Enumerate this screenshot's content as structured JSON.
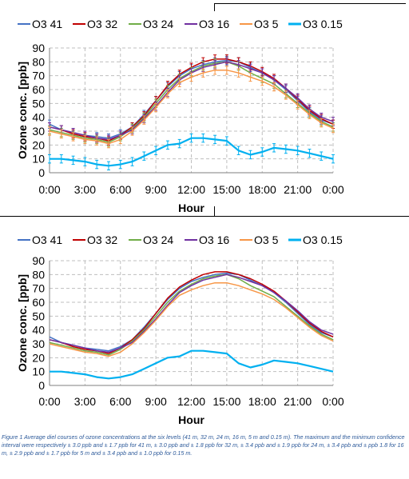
{
  "colors": {
    "O3 41": "#4472c4",
    "O3 32": "#c00000",
    "O3 24": "#70ad47",
    "O3 16": "#7030a0",
    "O3 5": "#f79646",
    "O3 0.15": "#00b0f0"
  },
  "chart_data": [
    {
      "type": "line",
      "title": "",
      "xlabel": "Hour",
      "ylabel": "Ozone conc. [ppb]",
      "ylim": [
        0,
        90
      ],
      "xlim": [
        "0:00",
        "24:00"
      ],
      "y_ticks": [
        "0",
        "10",
        "20",
        "30",
        "40",
        "50",
        "60",
        "70",
        "80",
        "90"
      ],
      "x_ticks": [
        "0:00",
        "3:00",
        "6:00",
        "9:00",
        "12:00",
        "15:00",
        "18:00",
        "21:00",
        "0:00"
      ],
      "grid": true,
      "error_bars": true,
      "legend_position": "top",
      "x": [
        0,
        1,
        2,
        3,
        4,
        5,
        6,
        7,
        8,
        9,
        10,
        11,
        12,
        13,
        14,
        15,
        16,
        17,
        18,
        19,
        20,
        21,
        22,
        23,
        24
      ],
      "series": [
        {
          "name": "O3 41",
          "values": [
            35,
            31,
            29,
            27,
            26,
            25,
            28,
            33,
            42,
            52,
            62,
            70,
            75,
            78,
            80,
            81,
            80,
            76,
            72,
            67,
            60,
            52,
            44,
            38,
            35
          ]
        },
        {
          "name": "O3 32",
          "values": [
            33,
            31,
            28,
            26,
            25,
            23,
            27,
            33,
            41,
            52,
            63,
            71,
            76,
            80,
            82,
            82,
            80,
            77,
            73,
            68,
            61,
            53,
            45,
            39,
            35
          ]
        },
        {
          "name": "O3 24",
          "values": [
            31,
            29,
            27,
            25,
            24,
            22,
            26,
            32,
            40,
            50,
            60,
            68,
            73,
            77,
            79,
            80,
            77,
            72,
            68,
            64,
            57,
            50,
            43,
            37,
            33
          ]
        },
        {
          "name": "O3 16",
          "values": [
            33,
            31,
            29,
            27,
            25,
            24,
            27,
            31,
            39,
            48,
            58,
            67,
            72,
            76,
            78,
            80,
            78,
            75,
            72,
            67,
            61,
            54,
            46,
            40,
            37
          ]
        },
        {
          "name": "O3 5",
          "values": [
            30,
            28,
            26,
            24,
            23,
            21,
            24,
            30,
            38,
            47,
            57,
            65,
            69,
            72,
            74,
            74,
            72,
            69,
            66,
            62,
            56,
            49,
            42,
            36,
            32
          ]
        },
        {
          "name": "O3 0.15",
          "values": [
            10,
            10,
            9,
            8,
            6,
            5,
            6,
            8,
            12,
            16,
            20,
            21,
            25,
            25,
            24,
            23,
            16,
            13,
            15,
            18,
            17,
            16,
            14,
            12,
            10
          ]
        }
      ]
    },
    {
      "type": "line",
      "title": "",
      "xlabel": "Hour",
      "ylabel": "Ozone conc. [ppb]",
      "ylim": [
        0,
        90
      ],
      "xlim": [
        "0:00",
        "24:00"
      ],
      "y_ticks": [
        "0",
        "10",
        "20",
        "30",
        "40",
        "50",
        "60",
        "70",
        "80",
        "90"
      ],
      "x_ticks": [
        "0:00",
        "3:00",
        "6:00",
        "9:00",
        "12:00",
        "15:00",
        "18:00",
        "21:00",
        "0:00"
      ],
      "grid": true,
      "error_bars": false,
      "legend_position": "top",
      "x": [
        0,
        1,
        2,
        3,
        4,
        5,
        6,
        7,
        8,
        9,
        10,
        11,
        12,
        13,
        14,
        15,
        16,
        17,
        18,
        19,
        20,
        21,
        22,
        23,
        24
      ],
      "series": [
        {
          "name": "O3 41",
          "values": [
            35,
            31,
            29,
            27,
            26,
            25,
            28,
            33,
            42,
            52,
            62,
            70,
            75,
            78,
            80,
            81,
            80,
            76,
            72,
            67,
            60,
            52,
            44,
            38,
            35
          ]
        },
        {
          "name": "O3 32",
          "values": [
            33,
            31,
            28,
            26,
            25,
            23,
            27,
            33,
            41,
            52,
            63,
            71,
            76,
            80,
            82,
            82,
            80,
            77,
            73,
            68,
            61,
            53,
            45,
            39,
            35
          ]
        },
        {
          "name": "O3 24",
          "values": [
            31,
            29,
            27,
            25,
            24,
            22,
            26,
            32,
            40,
            50,
            60,
            68,
            73,
            77,
            79,
            80,
            77,
            72,
            68,
            64,
            57,
            50,
            43,
            37,
            33
          ]
        },
        {
          "name": "O3 16",
          "values": [
            33,
            31,
            29,
            27,
            25,
            24,
            27,
            31,
            39,
            48,
            58,
            67,
            72,
            76,
            78,
            80,
            78,
            75,
            72,
            67,
            61,
            54,
            46,
            40,
            37
          ]
        },
        {
          "name": "O3 5",
          "values": [
            30,
            28,
            26,
            24,
            23,
            21,
            24,
            30,
            38,
            47,
            57,
            65,
            69,
            72,
            74,
            74,
            72,
            69,
            66,
            62,
            56,
            49,
            42,
            36,
            32
          ]
        },
        {
          "name": "O3 0.15",
          "values": [
            10,
            10,
            9,
            8,
            6,
            5,
            6,
            8,
            12,
            16,
            20,
            21,
            25,
            25,
            24,
            23,
            16,
            13,
            15,
            18,
            17,
            16,
            14,
            12,
            10
          ]
        }
      ]
    }
  ],
  "caption": "Figure 1 Average diel courses of ozone concentrations at the six levels (41 m, 32 m, 24 m, 16 m, 5 m and 0.15 m). The maximum and the minimum confidence interval were respectively ± 3.0 ppb and ± 1.7 ppb for 41 m, ± 3.0 ppb and ± 1.8 ppb for 32 m, ± 3.4 ppb and ± 1.9 ppb for 24 m, ± 3.4 ppb and ±  ppb 1.8 for 16 m, ± 2.9 ppb and ± 1.7 ppb for 5 m and ± 3.4 ppb and ± 1.0 ppb for 0.15 m."
}
